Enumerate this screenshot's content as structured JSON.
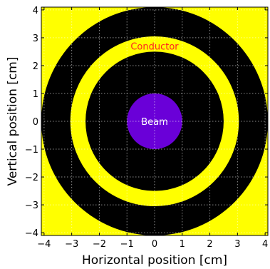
{
  "chart_data": {
    "type": "heatmap",
    "title": "",
    "xlabel": "Horizontal position [cm]",
    "ylabel": "Vertical position [cm]",
    "xlim": [
      -4.1,
      4.1
    ],
    "ylim": [
      -4.1,
      4.1
    ],
    "xticks": [
      -4,
      -3,
      -2,
      -1,
      0,
      1,
      2,
      3,
      4
    ],
    "yticks": [
      -4,
      -3,
      -2,
      -1,
      0,
      1,
      2,
      3,
      4
    ],
    "xtick_labels": [
      "−4",
      "−3",
      "−2",
      "−1",
      "0",
      "1",
      "2",
      "3",
      "4"
    ],
    "ytick_labels": [
      "−4",
      "−3",
      "−2",
      "−1",
      "0",
      "1",
      "2",
      "3",
      "4"
    ],
    "grid": true,
    "regions": [
      {
        "name": "background",
        "shape": "fill",
        "color": "#ffff00"
      },
      {
        "name": "outer-vacuum",
        "shape": "disk",
        "radius": 4.1,
        "color": "#000000"
      },
      {
        "name": "conductor",
        "shape": "annulus",
        "r_inner": 2.5,
        "r_outer": 3.05,
        "color": "#ffff00"
      },
      {
        "name": "beam",
        "shape": "disk",
        "radius": 1.0,
        "color": "#6a00d8"
      }
    ],
    "annotations": [
      {
        "text": "Conductor",
        "x": 0.0,
        "y": 2.7,
        "color": "#ff2020"
      },
      {
        "text": "Beam",
        "x": 0.0,
        "y": 0.0,
        "color": "#ffffff"
      }
    ]
  }
}
